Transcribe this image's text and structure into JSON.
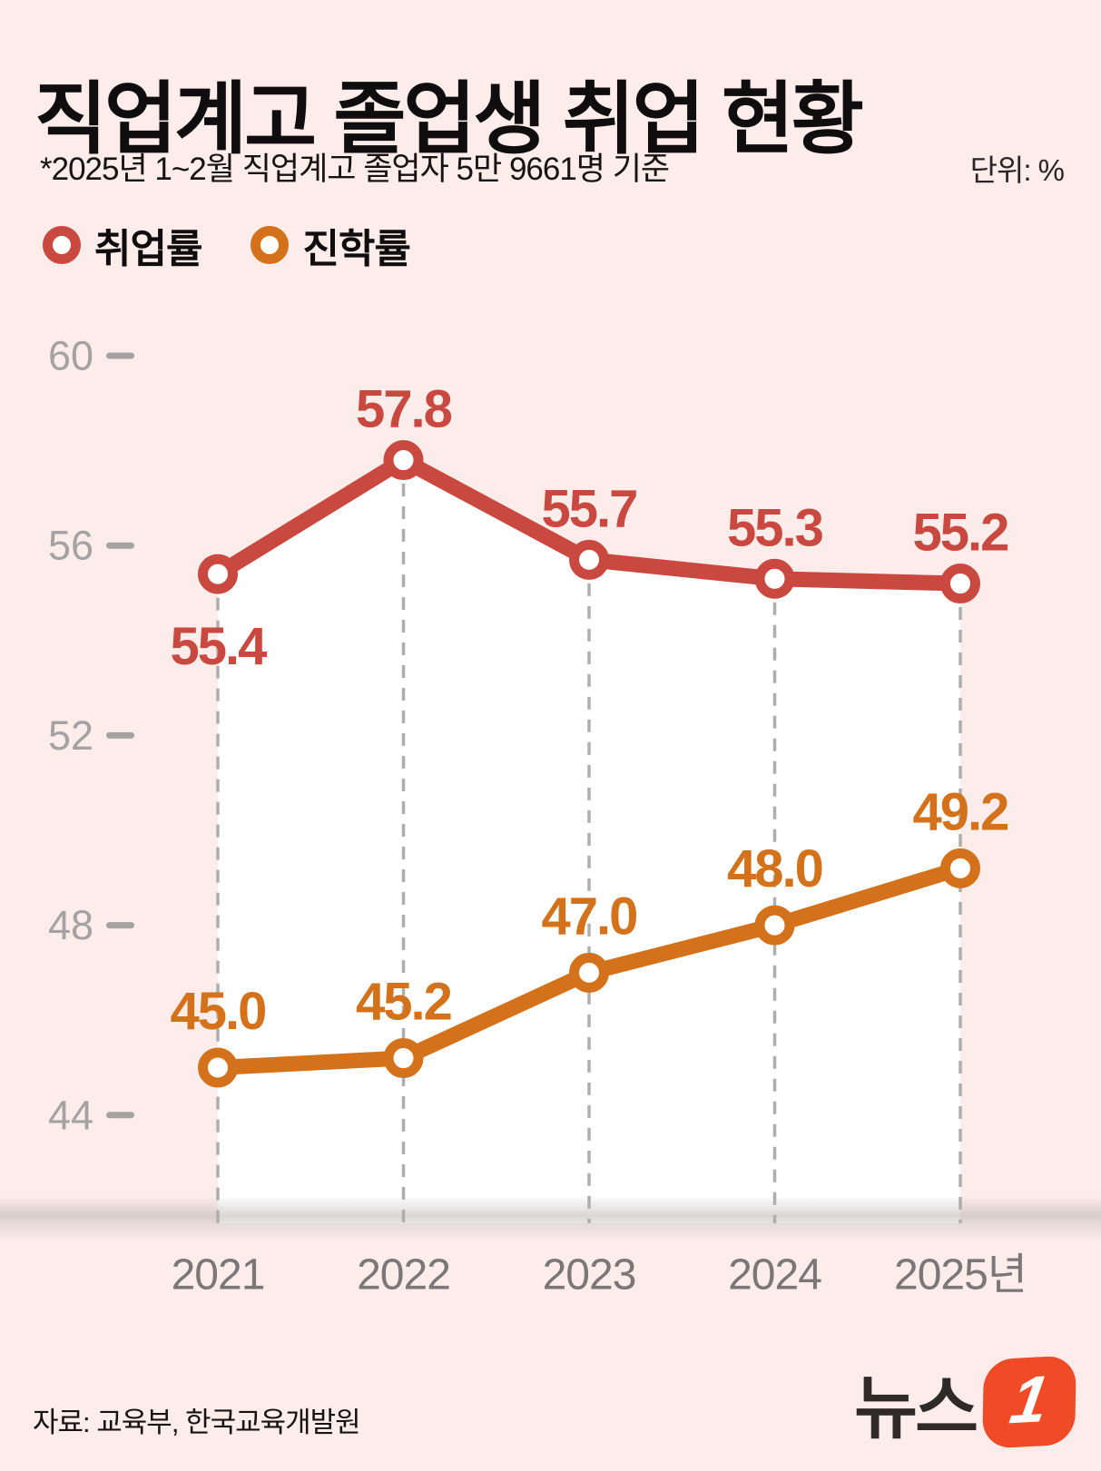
{
  "header": {
    "title": "직업계고 졸업생 취업 현황",
    "subtitle": "*2025년 1~2월 직업계고 졸업자 5만 9661명 기준",
    "unit_label": "단위: %"
  },
  "legend": [
    {
      "label": "취업률",
      "color": "#c9483f"
    },
    {
      "label": "진학률",
      "color": "#d4721c"
    }
  ],
  "chart_data": {
    "type": "line",
    "title": "직업계고 졸업생 취업 현황",
    "unit": "%",
    "categories": [
      "2021",
      "2022",
      "2023",
      "2024",
      "2025년"
    ],
    "series": [
      {
        "name": "취업률",
        "color": "#c9483f",
        "values": [
          55.4,
          57.8,
          55.7,
          55.3,
          55.2
        ]
      },
      {
        "name": "진학률",
        "color": "#d4721c",
        "values": [
          45.0,
          45.2,
          47.0,
          48.0,
          49.2
        ]
      }
    ],
    "yticks": [
      60,
      56,
      52,
      48,
      44
    ],
    "ylim": [
      44,
      60
    ],
    "grid": "vertical-dashed",
    "legend_position": "top-left",
    "label_decimals": 1
  },
  "colors": {
    "background": "#fcecea",
    "area_fill": "#ffffff",
    "gridline": "#b0adad",
    "ytick_text": "#a5a2a2",
    "xtick_text": "#7b7777"
  },
  "footer": {
    "source": "자료: 교육부, 한국교육개발원",
    "logo_text": "뉴스",
    "logo_numeral": "1",
    "logo_color": "#f14a26"
  }
}
